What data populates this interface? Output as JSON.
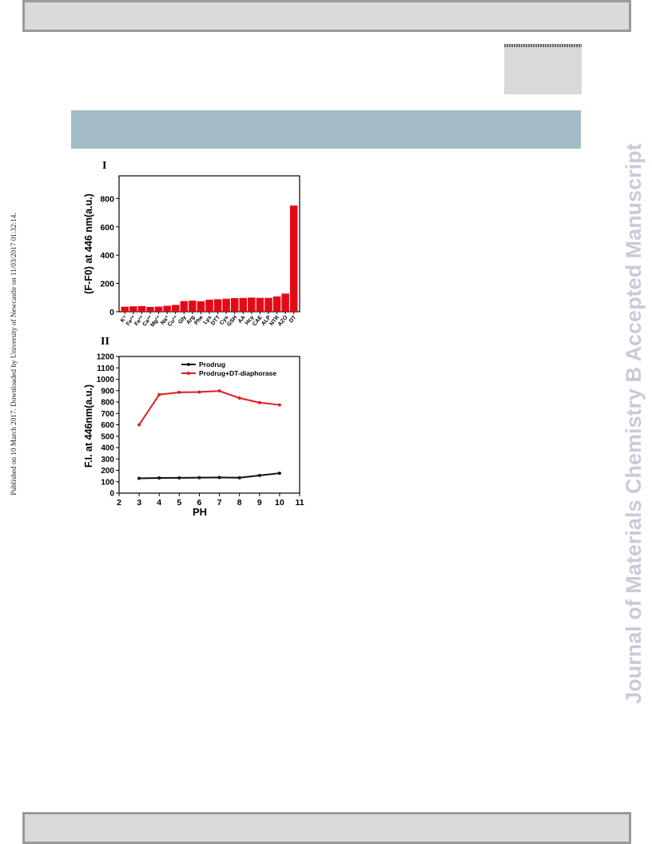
{
  "side_left_text": "Published on 10 March 2017. Downloaded by University of Newcastle on 11/03/2017 01:32:14.",
  "side_right_text": "Journal of Materials Chemistry B Accepted Manuscript",
  "colors": {
    "bar_red": "#e30a17",
    "line_red": "#e01d24",
    "line_black": "#111111",
    "band_blue": "#a1bcc7"
  },
  "chart_data": [
    {
      "type": "bar",
      "panel_label": "I",
      "ylabel": "(F-F0) at 446 nm(a.u.)",
      "xlabel": "",
      "categories": [
        "K⁺",
        "Fe²⁺",
        "Fe³⁺",
        "Ca²⁺",
        "Mg²⁺",
        "Na⁺",
        "Cu²⁺",
        "Gly",
        "Arg",
        "Phe",
        "Lys",
        "DTT",
        "Cys",
        "GSH",
        "AA",
        "Hcy",
        "CAE",
        "ALP",
        "NTR",
        "AZO",
        "DT"
      ],
      "values": [
        35,
        38,
        40,
        34,
        36,
        42,
        48,
        75,
        78,
        74,
        85,
        88,
        92,
        96,
        97,
        100,
        98,
        98,
        108,
        128,
        750
      ],
      "ylim": [
        0,
        960
      ],
      "yticks": [
        "0",
        "200",
        "400",
        "600",
        "800"
      ],
      "grid": false
    },
    {
      "type": "line",
      "panel_label": "II",
      "xlabel": "PH",
      "ylabel": "F.I. at 446nm(a.u.)",
      "xlim": [
        2,
        11
      ],
      "ylim": [
        0,
        1200
      ],
      "xticks": [
        "2",
        "3",
        "4",
        "5",
        "6",
        "7",
        "8",
        "9",
        "10",
        "11"
      ],
      "yticks": [
        "0",
        "100",
        "200",
        "300",
        "400",
        "500",
        "600",
        "700",
        "800",
        "900",
        "1000",
        "1100",
        "1200"
      ],
      "legend_position": "top-center",
      "grid": false,
      "series": [
        {
          "name": "Prodrug",
          "x": [
            3,
            4,
            5,
            6,
            7,
            8,
            9,
            10
          ],
          "values": [
            130,
            133,
            134,
            136,
            138,
            135,
            155,
            175
          ]
        },
        {
          "name": "Prodrug+DT-diaphorase",
          "x": [
            3,
            4,
            5,
            6,
            7,
            8,
            9,
            10
          ],
          "values": [
            600,
            865,
            885,
            888,
            897,
            835,
            795,
            775
          ]
        }
      ]
    }
  ]
}
